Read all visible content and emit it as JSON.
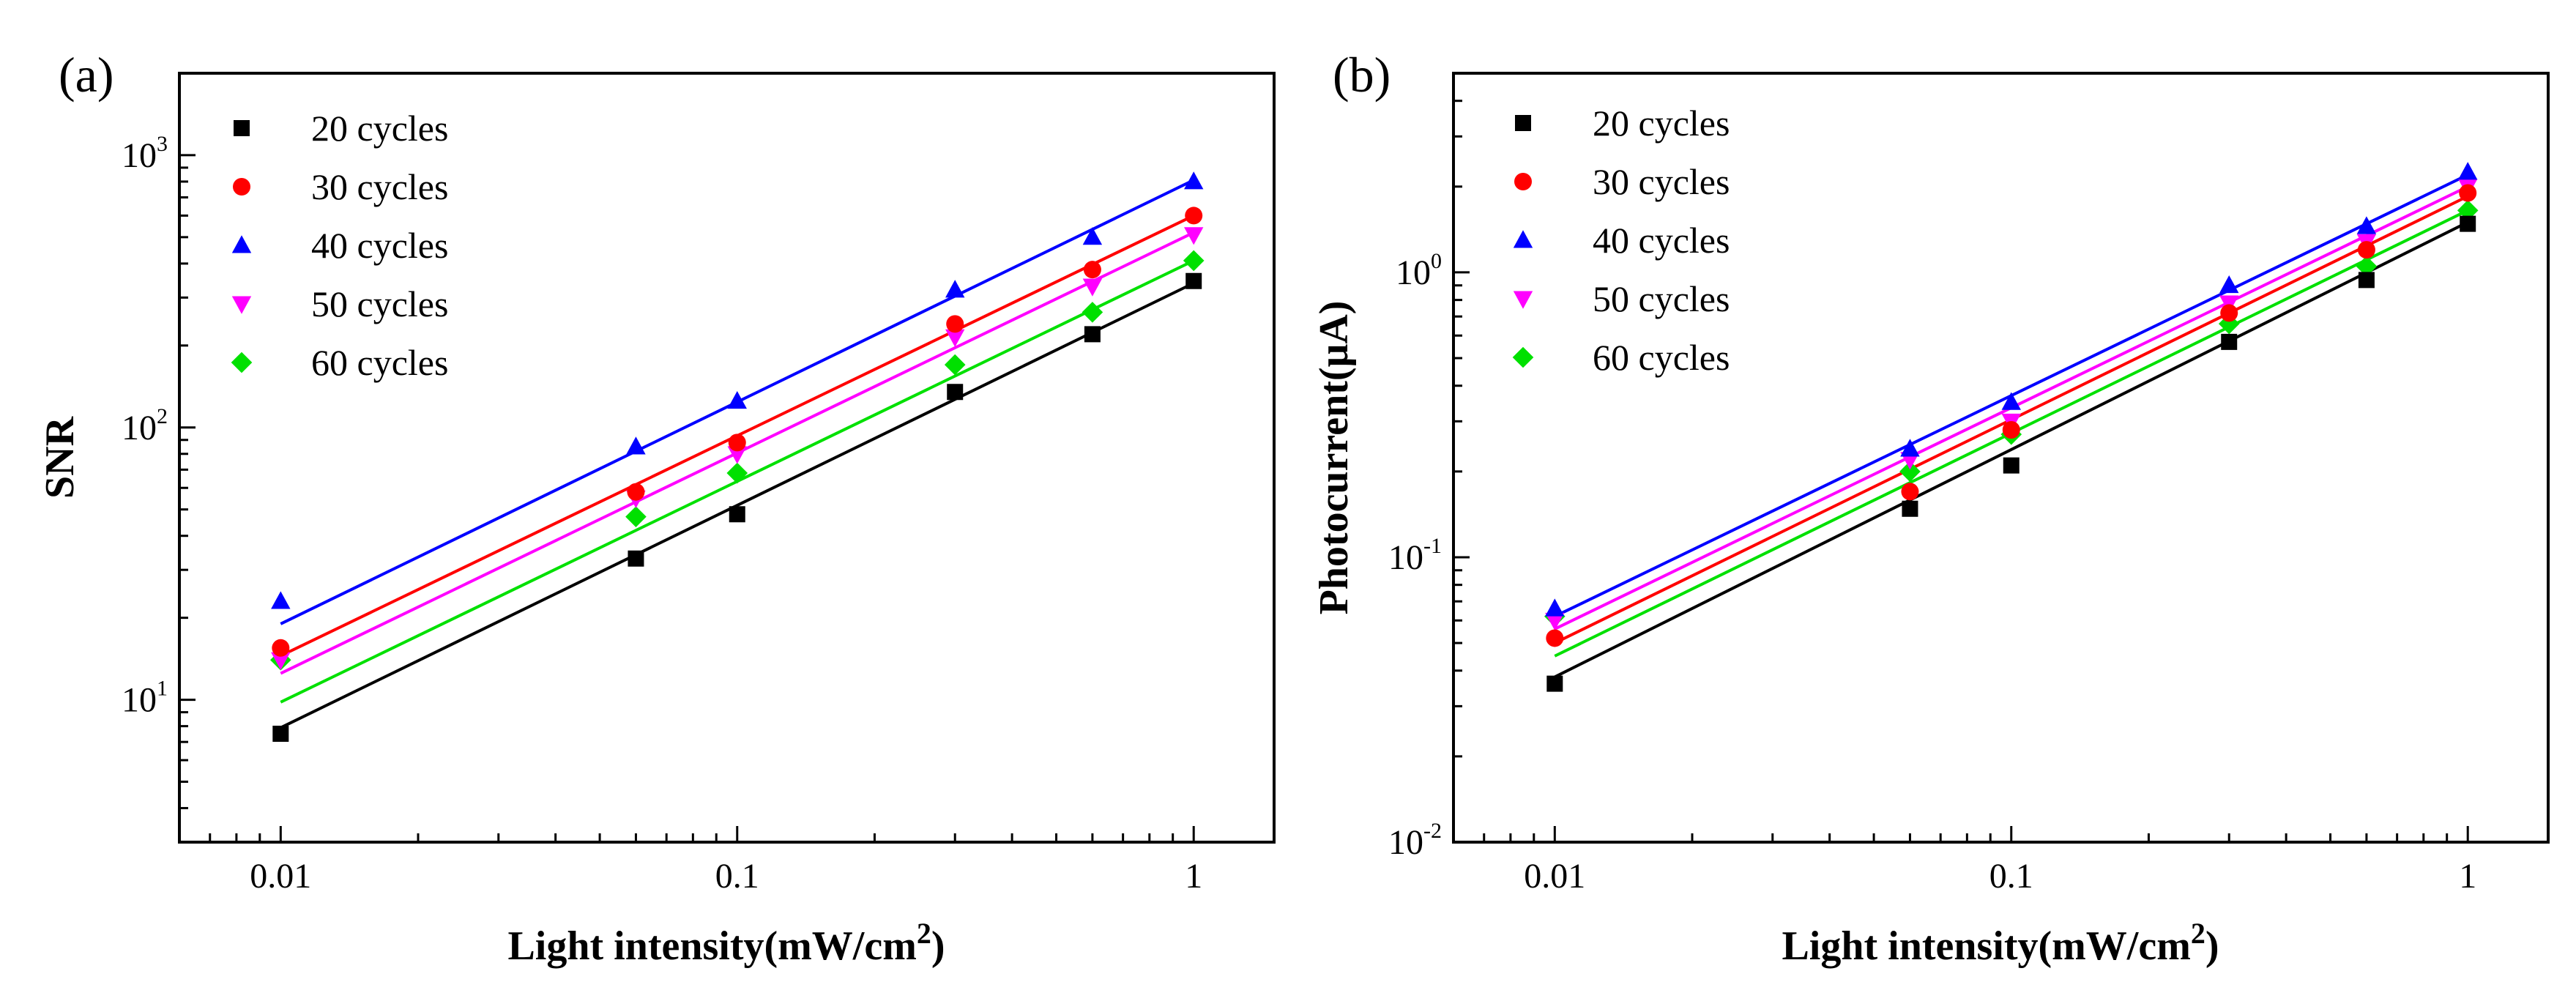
{
  "colors": {
    "20": "#000000",
    "30": "#ff0000",
    "40": "#0000ff",
    "50": "#ff00ff",
    "60": "#00e000"
  },
  "chart_data": [
    {
      "type": "scatter",
      "panel_label": "(a)",
      "xscale": "log",
      "yscale": "log",
      "xlabel": "Light intensity(mW/cm",
      "xlabel_superscript": "2",
      "xlabel_suffix": ")",
      "ylabel": "SNR",
      "xlim": [
        0.006,
        1.5
      ],
      "ylim": [
        3,
        2000
      ],
      "xticks": [
        {
          "value": 0.01,
          "label": "0.01"
        },
        {
          "value": 0.1,
          "label": "0.1"
        },
        {
          "value": 1,
          "label": "1"
        }
      ],
      "yticks": [
        {
          "value": 10,
          "base": "10",
          "exp": "1"
        },
        {
          "value": 100,
          "base": "10",
          "exp": "2"
        },
        {
          "value": 1000,
          "base": "10",
          "exp": "3"
        }
      ],
      "legend_position": "top-left",
      "x": [
        0.01,
        0.06,
        0.1,
        0.3,
        0.6,
        1
      ],
      "series": [
        {
          "name": "20 cycles",
          "marker": "square",
          "color_key": "20",
          "values": [
            7.5,
            33,
            48,
            135,
            220,
            345
          ],
          "fit": [
            7.9,
            339
          ]
        },
        {
          "name": "30 cycles",
          "marker": "circle",
          "color_key": "30",
          "values": [
            15.5,
            58,
            88,
            240,
            380,
            600
          ],
          "fit": [
            14.5,
            600
          ]
        },
        {
          "name": "40 cycles",
          "marker": "triangle-up",
          "color_key": "40",
          "values": [
            23,
            85,
            125,
            320,
            500,
            800
          ],
          "fit": [
            19,
            810
          ]
        },
        {
          "name": "50 cycles",
          "marker": "triangle-down",
          "color_key": "50",
          "values": [
            14,
            55,
            80,
            215,
            330,
            510
          ],
          "fit": [
            12.5,
            520
          ]
        },
        {
          "name": "60 cycles",
          "marker": "diamond",
          "color_key": "60",
          "values": [
            14,
            47,
            68,
            170,
            265,
            410
          ],
          "fit": [
            9.8,
            410
          ]
        }
      ]
    },
    {
      "type": "scatter",
      "panel_label": "(b)",
      "xscale": "log",
      "yscale": "log",
      "xlabel": "Light intensity(mW/cm",
      "xlabel_superscript": "2",
      "xlabel_suffix": ")",
      "ylabel": "Photocurrent(μA)",
      "xlim": [
        0.006,
        1.5
      ],
      "ylim": [
        0.01,
        5
      ],
      "xticks": [
        {
          "value": 0.01,
          "label": "0.01"
        },
        {
          "value": 0.1,
          "label": "0.1"
        },
        {
          "value": 1,
          "label": "1"
        }
      ],
      "yticks": [
        {
          "value": 0.01,
          "base": "10",
          "exp": "-2"
        },
        {
          "value": 0.1,
          "base": "10",
          "exp": "-1"
        },
        {
          "value": 1,
          "base": "10",
          "exp": "0"
        }
      ],
      "legend_position": "top-left",
      "x": [
        0.01,
        0.06,
        0.1,
        0.3,
        0.6,
        1
      ],
      "series": [
        {
          "name": "20 cycles",
          "marker": "square",
          "color_key": "20",
          "values": [
            0.036,
            0.148,
            0.21,
            0.57,
            0.94,
            1.48
          ],
          "fit": [
            0.038,
            1.5
          ]
        },
        {
          "name": "30 cycles",
          "marker": "circle",
          "color_key": "30",
          "values": [
            0.052,
            0.17,
            0.28,
            0.72,
            1.2,
            1.9
          ],
          "fit": [
            0.05,
            1.85
          ]
        },
        {
          "name": "40 cycles",
          "marker": "triangle-up",
          "color_key": "40",
          "values": [
            0.066,
            0.24,
            0.35,
            0.9,
            1.45,
            2.25
          ],
          "fit": [
            0.062,
            2.2
          ]
        },
        {
          "name": "50 cycles",
          "marker": "triangle-down",
          "color_key": "50",
          "values": [
            0.06,
            0.22,
            0.3,
            0.78,
            1.28,
            2.0
          ],
          "fit": [
            0.056,
            2.0
          ]
        },
        {
          "name": "60 cycles",
          "marker": "diamond",
          "color_key": "60",
          "values": [
            0.062,
            0.2,
            0.27,
            0.66,
            1.05,
            1.65
          ],
          "fit": [
            0.045,
            1.65
          ]
        }
      ]
    }
  ]
}
